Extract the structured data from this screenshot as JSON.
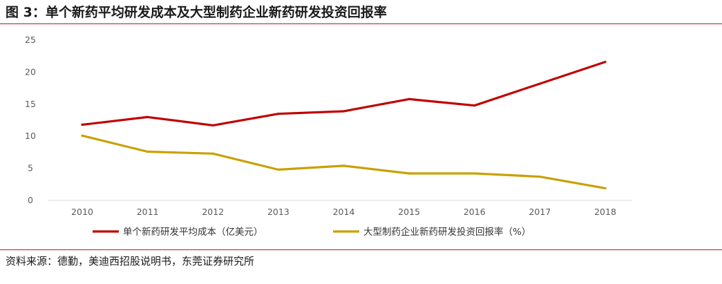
{
  "figure": {
    "title": "图 3：单个新药平均研发成本及大型制药企业新药研发投资回报率",
    "source": "资料来源：德勤，美迪西招股说明书，东莞证券研究所"
  },
  "chart_data": {
    "type": "line",
    "title": "",
    "xlabel": "",
    "ylabel": "",
    "x": [
      "2010",
      "2011",
      "2012",
      "2013",
      "2014",
      "2015",
      "2016",
      "2017",
      "2018"
    ],
    "ylim": [
      0,
      25
    ],
    "yticks": [
      0,
      5,
      10,
      15,
      20,
      25
    ],
    "grid": false,
    "legend_position": "bottom",
    "series": [
      {
        "name": "单个新药研发平均成本（亿美元）",
        "color": "#c00000",
        "values": [
          11.8,
          13.0,
          11.7,
          13.5,
          13.9,
          15.8,
          14.8,
          18.2,
          21.6
        ]
      },
      {
        "name": "大型制药企业新药研发投资回报率（%）",
        "color": "#c9a000",
        "values": [
          10.1,
          7.6,
          7.3,
          4.8,
          5.4,
          4.2,
          4.2,
          3.7,
          1.9
        ]
      }
    ]
  }
}
